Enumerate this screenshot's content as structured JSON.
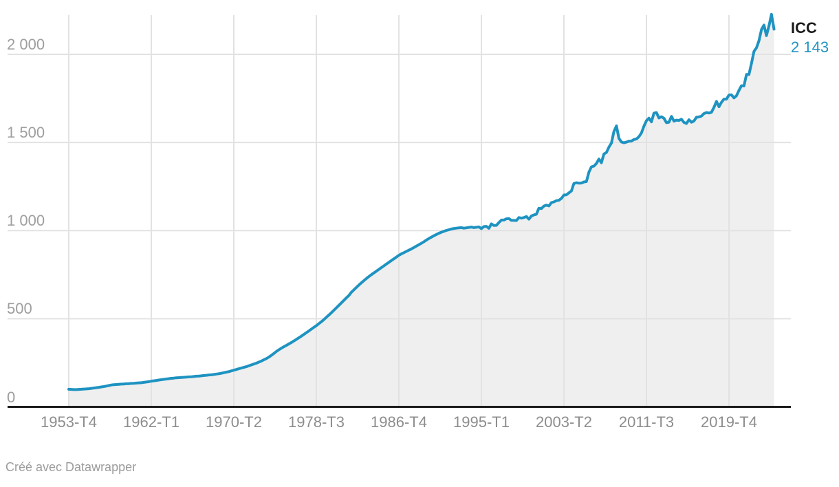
{
  "chart": {
    "series_label": "ICC",
    "last_value_label": "2 143",
    "attribution": {
      "prefix": "Créé avec ",
      "brand": "Datawrapper"
    },
    "colors": {
      "line": "#1e93c1",
      "area": "#efefef",
      "grid": "#e2e2e2",
      "baseline": "#1c1c1c",
      "value_text": "#1e93c1",
      "label_text": "#1a1a1a",
      "x_tick_text": "#8d8d8d",
      "y_tick_text": "#9e9e9e"
    }
  },
  "chart_data": {
    "type": "area",
    "series_name": "ICC",
    "title": "",
    "xlabel": "",
    "ylabel": "",
    "x_start": "1953-T4",
    "frequency": "quarterly",
    "grid": true,
    "legend_position": "end-of-line-right",
    "ylim": [
      0,
      2222
    ],
    "x_tick_step_quarters": 33,
    "x_tick_labels": [
      "1953-T4",
      "1962-T1",
      "1970-T2",
      "1978-T3",
      "1986-T4",
      "1995-T1",
      "2003-T2",
      "2011-T3",
      "2019-T4"
    ],
    "y_ticks": [
      {
        "value": 0,
        "label": "0"
      },
      {
        "value": 500,
        "label": "500"
      },
      {
        "value": 1000,
        "label": "1 000"
      },
      {
        "value": 1500,
        "label": "1 500"
      },
      {
        "value": 2000,
        "label": "2 000"
      }
    ],
    "last_point_value": 2143,
    "values": [
      100,
      99,
      98,
      98,
      99,
      100,
      101,
      102,
      103,
      105,
      107,
      109,
      111,
      113,
      115,
      118,
      121,
      124,
      126,
      127,
      128,
      129,
      130,
      131,
      132,
      133,
      134,
      135,
      136,
      137,
      139,
      141,
      143,
      146,
      148,
      150,
      152,
      154,
      156,
      158,
      160,
      162,
      163,
      165,
      166,
      167,
      168,
      169,
      170,
      171,
      172,
      174,
      175,
      176,
      178,
      179,
      181,
      182,
      184,
      186,
      188,
      191,
      194,
      197,
      200,
      204,
      208,
      212,
      216,
      220,
      224,
      228,
      233,
      238,
      243,
      248,
      254,
      260,
      267,
      274,
      282,
      292,
      303,
      314,
      324,
      333,
      341,
      349,
      357,
      365,
      374,
      383,
      392,
      401,
      411,
      421,
      431,
      441,
      451,
      461,
      472,
      483,
      495,
      508,
      521,
      534,
      548,
      562,
      576,
      590,
      604,
      618,
      632,
      650,
      664,
      678,
      691,
      704,
      716,
      728,
      739,
      750,
      760,
      770,
      780,
      790,
      800,
      810,
      820,
      830,
      840,
      850,
      860,
      868,
      875,
      882,
      889,
      896,
      904,
      912,
      920,
      928,
      937,
      946,
      955,
      963,
      971,
      978,
      985,
      991,
      996,
      1001,
      1005,
      1009,
      1012,
      1014,
      1016,
      1017,
      1014,
      1016,
      1018,
      1020,
      1017,
      1019,
      1021,
      1011,
      1023,
      1024,
      1013,
      1038,
      1029,
      1030,
      1046,
      1060,
      1060,
      1067,
      1068,
      1058,
      1058,
      1057,
      1074,
      1071,
      1074,
      1080,
      1065,
      1083,
      1089,
      1093,
      1127,
      1125,
      1139,
      1145,
      1140,
      1159,
      1163,
      1170,
      1172,
      1183,
      1202,
      1203,
      1214,
      1225,
      1267,
      1272,
      1269,
      1270,
      1276,
      1278,
      1332,
      1362,
      1366,
      1381,
      1406,
      1385,
      1435,
      1443,
      1474,
      1497,
      1562,
      1594,
      1523,
      1503,
      1498,
      1502,
      1507,
      1508,
      1517,
      1520,
      1533,
      1554,
      1593,
      1624,
      1638,
      1617,
      1666,
      1670,
      1639,
      1646,
      1637,
      1612,
      1615,
      1648,
      1621,
      1627,
      1625,
      1632,
      1614,
      1608,
      1629,
      1615,
      1622,
      1643,
      1645,
      1650,
      1664,
      1670,
      1667,
      1671,
      1699,
      1733,
      1703,
      1728,
      1746,
      1746,
      1769,
      1770,
      1753,
      1765,
      1795,
      1822,
      1821,
      1886,
      1886,
      1948,
      2017,
      2037,
      2077,
      2141,
      2166,
      2106,
      2162,
      2227,
      2143
    ]
  }
}
